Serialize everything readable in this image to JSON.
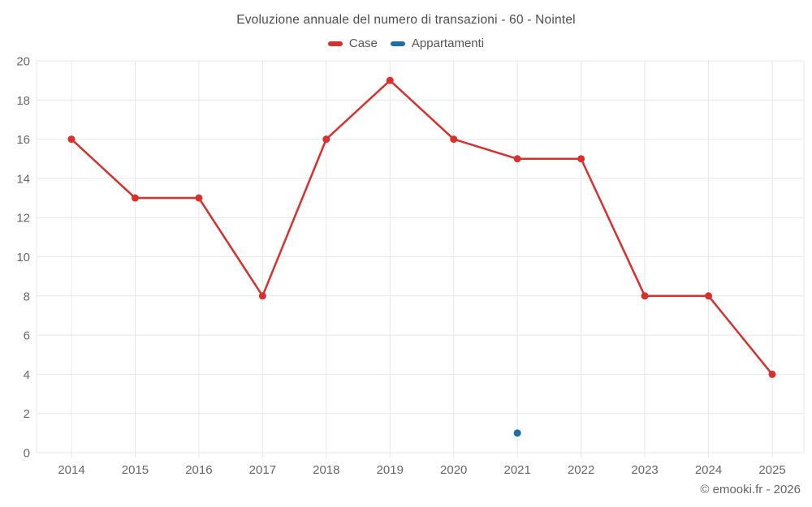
{
  "chart": {
    "footer": "© emooki.fr - 2026"
  },
  "chart_data": {
    "type": "line",
    "title": "Evoluzione annuale del numero di transazioni - 60 - Nointel",
    "x": [
      2014,
      2015,
      2016,
      2017,
      2018,
      2019,
      2020,
      2021,
      2022,
      2023,
      2024,
      2025
    ],
    "series": [
      {
        "name": "Case",
        "color": "#d7302d",
        "values": [
          16,
          13,
          13,
          8,
          16,
          19,
          16,
          15,
          15,
          8,
          8,
          4
        ]
      },
      {
        "name": "Appartamenti",
        "color": "#1d6fa5",
        "values": [
          null,
          null,
          null,
          null,
          null,
          null,
          null,
          1,
          null,
          null,
          null,
          null
        ]
      }
    ],
    "xlabel": "",
    "ylabel": "",
    "ylim": [
      0,
      20
    ],
    "ytick_step": 2,
    "grid": true,
    "grid_color": "#e7e7e7",
    "legend_position": "top"
  }
}
